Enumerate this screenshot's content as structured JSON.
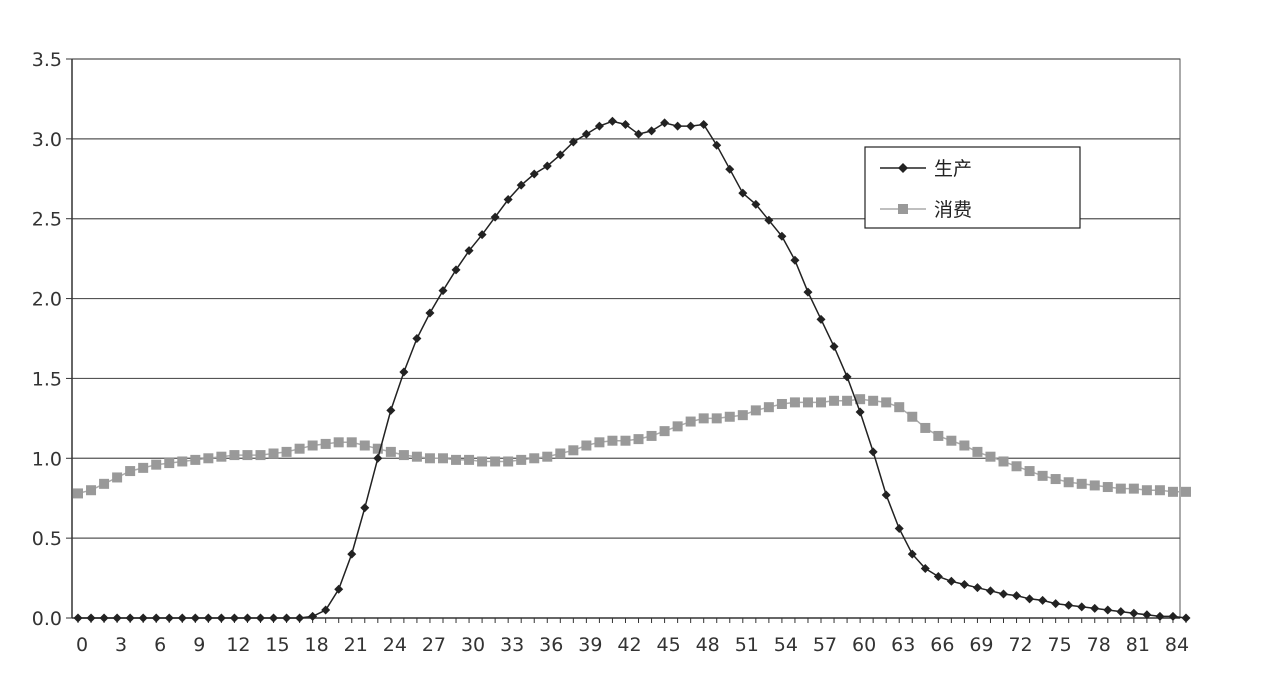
{
  "chart_data": {
    "type": "line",
    "title": "",
    "xlabel": "",
    "ylabel": "",
    "ylim": [
      0,
      3.5
    ],
    "xlim": [
      0,
      85
    ],
    "yticks": [
      "0.0",
      "0.5",
      "1.0",
      "1.5",
      "2.0",
      "2.5",
      "3.0",
      "3.5"
    ],
    "xticks": [
      "0",
      "3",
      "6",
      "9",
      "12",
      "15",
      "18",
      "21",
      "24",
      "27",
      "30",
      "33",
      "36",
      "39",
      "42",
      "45",
      "48",
      "51",
      "54",
      "57",
      "60",
      "63",
      "66",
      "69",
      "72",
      "75",
      "78",
      "81",
      "84"
    ],
    "grid": true,
    "legend_position": "top-right",
    "x": [
      0,
      1,
      2,
      3,
      4,
      5,
      6,
      7,
      8,
      9,
      10,
      11,
      12,
      13,
      14,
      15,
      16,
      17,
      18,
      19,
      20,
      21,
      22,
      23,
      24,
      25,
      26,
      27,
      28,
      29,
      30,
      31,
      32,
      33,
      34,
      35,
      36,
      37,
      38,
      39,
      40,
      41,
      42,
      43,
      44,
      45,
      46,
      47,
      48,
      49,
      50,
      51,
      52,
      53,
      54,
      55,
      56,
      57,
      58,
      59,
      60,
      61,
      62,
      63,
      64,
      65,
      66,
      67,
      68,
      69,
      70,
      71,
      72,
      73,
      74,
      75,
      76,
      77,
      78,
      79,
      80,
      81,
      82,
      83,
      84,
      85
    ],
    "series": [
      {
        "name": "生产",
        "color": "#222222",
        "marker": "diamond",
        "values": [
          0,
          0,
          0,
          0,
          0,
          0,
          0,
          0,
          0,
          0,
          0,
          0,
          0,
          0,
          0,
          0,
          0,
          0,
          0.01,
          0.05,
          0.18,
          0.4,
          0.69,
          1.0,
          1.3,
          1.54,
          1.75,
          1.91,
          2.05,
          2.18,
          2.3,
          2.4,
          2.51,
          2.62,
          2.71,
          2.78,
          2.83,
          2.9,
          2.98,
          3.03,
          3.08,
          3.11,
          3.09,
          3.03,
          3.05,
          3.1,
          3.08,
          3.08,
          3.09,
          2.96,
          2.81,
          2.66,
          2.59,
          2.49,
          2.39,
          2.24,
          2.04,
          1.87,
          1.7,
          1.51,
          1.29,
          1.04,
          0.77,
          0.56,
          0.4,
          0.31,
          0.26,
          0.23,
          0.21,
          0.19,
          0.17,
          0.15,
          0.14,
          0.12,
          0.11,
          0.09,
          0.08,
          0.07,
          0.06,
          0.05,
          0.04,
          0.03,
          0.02,
          0.01,
          0.01,
          0.0
        ]
      },
      {
        "name": "消费",
        "color": "#999999",
        "marker": "square",
        "values": [
          0.78,
          0.8,
          0.84,
          0.88,
          0.92,
          0.94,
          0.96,
          0.97,
          0.98,
          0.99,
          1.0,
          1.01,
          1.02,
          1.02,
          1.02,
          1.03,
          1.04,
          1.06,
          1.08,
          1.09,
          1.1,
          1.1,
          1.08,
          1.06,
          1.04,
          1.02,
          1.01,
          1.0,
          1.0,
          0.99,
          0.99,
          0.98,
          0.98,
          0.98,
          0.99,
          1.0,
          1.01,
          1.03,
          1.05,
          1.08,
          1.1,
          1.11,
          1.11,
          1.12,
          1.14,
          1.17,
          1.2,
          1.23,
          1.25,
          1.25,
          1.26,
          1.27,
          1.3,
          1.32,
          1.34,
          1.35,
          1.35,
          1.35,
          1.36,
          1.36,
          1.37,
          1.36,
          1.35,
          1.32,
          1.26,
          1.19,
          1.14,
          1.11,
          1.08,
          1.04,
          1.01,
          0.98,
          0.95,
          0.92,
          0.89,
          0.87,
          0.85,
          0.84,
          0.83,
          0.82,
          0.81,
          0.81,
          0.8,
          0.8,
          0.79,
          0.79
        ]
      }
    ]
  }
}
